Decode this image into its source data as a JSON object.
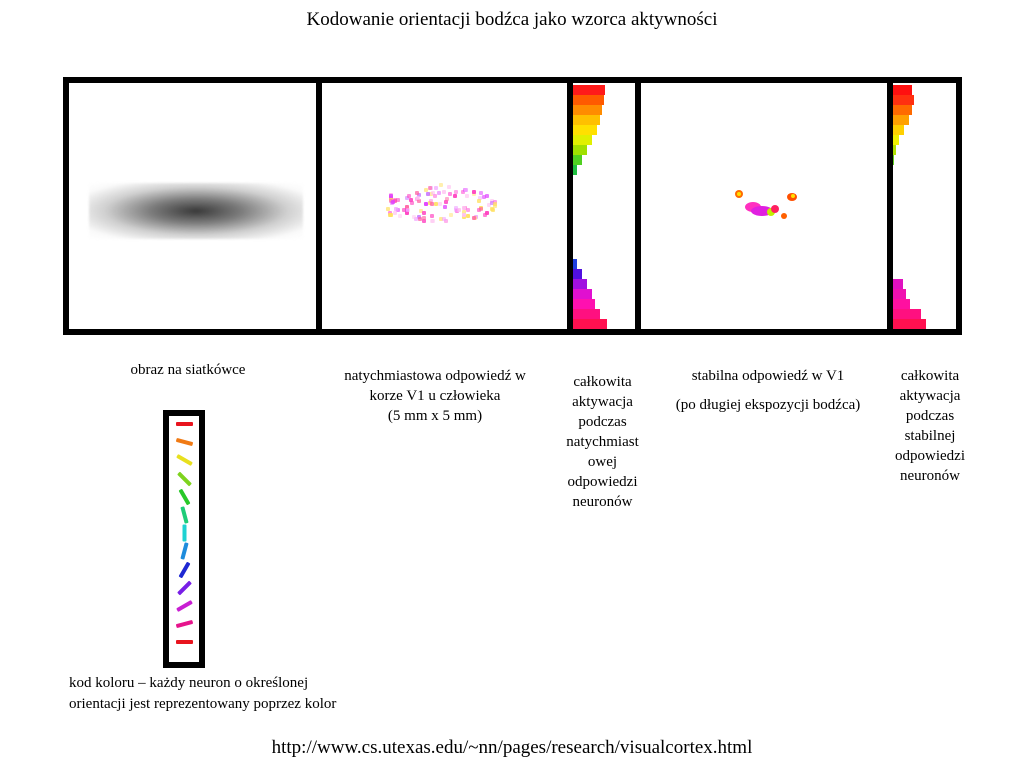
{
  "title": "Kodowanie orientacji  bodźca jako wzorca aktywności",
  "captions": {
    "retina": "obraz na siatkówce",
    "immediate_line1": "natychmiastowa odpowiedź w",
    "immediate_line2": "korze V1 u człowieka",
    "immediate_line3": "(5 mm x 5 mm)",
    "total_immediate": [
      "całkowita",
      "aktywacja",
      "podczas",
      "natychmiast",
      "owej",
      "odpowiedzi",
      "neuronów"
    ],
    "stable_line1": "stabilna odpowiedź w V1",
    "stable_line2": "(po długiej ekspozycji bodźca)",
    "total_stable": [
      "całkowita",
      "aktywacja",
      "podczas",
      "stabilnej",
      "odpowiedzi",
      "neuronów"
    ]
  },
  "legend_text_line1": "kod koloru – każdy neuron o określonej",
  "legend_text_line2": "orientacji jest reprezentowany poprzez kolor",
  "source_url": "http://www.cs.utexas.edu/~nn/pages/research/visualcortex.html",
  "orientation_colors": [
    "#e8141e",
    "#f07a14",
    "#e8e01e",
    "#7ed31e",
    "#28c828",
    "#1ecc78",
    "#1ed2d2",
    "#1e8cdc",
    "#1e28d2",
    "#781ee6",
    "#c81ed2",
    "#e6148c",
    "#e8141e"
  ],
  "histogram_immediate": [
    {
      "color": "#ff1a1a",
      "level": 0.95
    },
    {
      "color": "#ff5a00",
      "level": 0.9
    },
    {
      "color": "#ff8c00",
      "level": 0.85
    },
    {
      "color": "#ffc000",
      "level": 0.8
    },
    {
      "color": "#ffe000",
      "level": 0.7
    },
    {
      "color": "#e0f000",
      "level": 0.55
    },
    {
      "color": "#a0e000",
      "level": 0.4
    },
    {
      "color": "#50d020",
      "level": 0.25
    },
    {
      "color": "#20c040",
      "level": 0.12
    },
    {
      "color": "#2040e0",
      "level": 0.12
    },
    {
      "color": "#5010e0",
      "level": 0.25
    },
    {
      "color": "#a010e0",
      "level": 0.4
    },
    {
      "color": "#e010d0",
      "level": 0.55
    },
    {
      "color": "#ff10b0",
      "level": 0.65
    },
    {
      "color": "#ff1080",
      "level": 0.8
    },
    {
      "color": "#ff1050",
      "level": 1.0
    }
  ],
  "histogram_stable": [
    {
      "color": "#ff1010",
      "level": 0.55
    },
    {
      "color": "#ff3010",
      "level": 0.6
    },
    {
      "color": "#ff6a00",
      "level": 0.55
    },
    {
      "color": "#ffa000",
      "level": 0.45
    },
    {
      "color": "#ffd000",
      "level": 0.32
    },
    {
      "color": "#f0f000",
      "level": 0.18
    },
    {
      "color": "#b0e000",
      "level": 0.08
    },
    {
      "color": "#60d020",
      "level": 0.04
    },
    {
      "color": "#e010c0",
      "level": 0.28
    },
    {
      "color": "#f010b0",
      "level": 0.38
    },
    {
      "color": "#ff10a0",
      "level": 0.5
    },
    {
      "color": "#ff1080",
      "level": 0.8
    },
    {
      "color": "#ff1050",
      "level": 0.95
    }
  ]
}
